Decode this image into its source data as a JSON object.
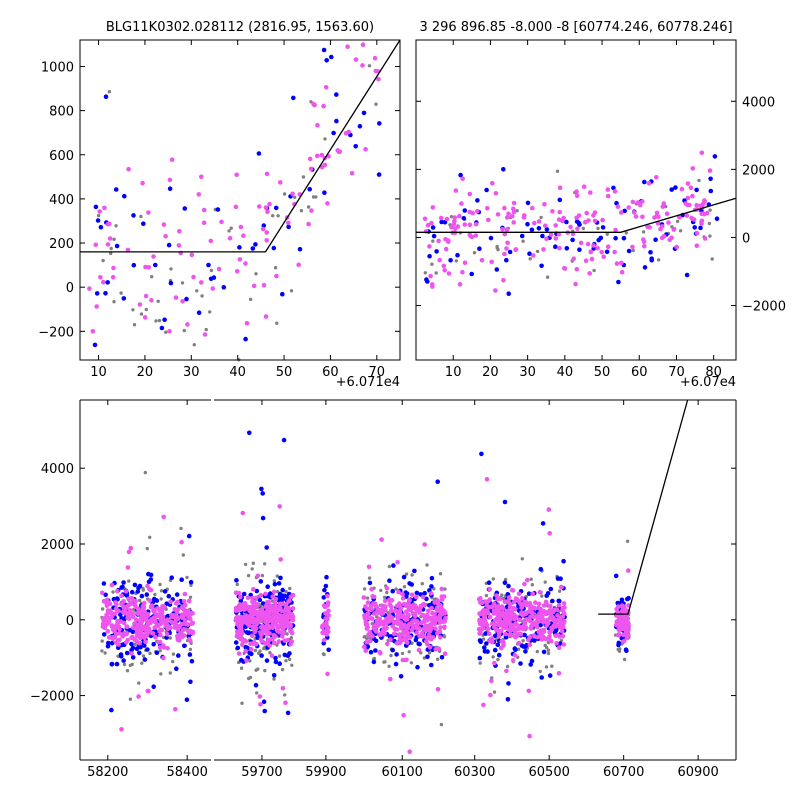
{
  "colors": {
    "gray": "#808080",
    "blue": "#0000ff",
    "pink": "#ee55ee",
    "fit": "#000000"
  },
  "chart_data": [
    {
      "id": "top-left",
      "type": "scatter",
      "title": "BLG11K0302.028112 (2816.95, 1563.60)",
      "xlim": [
        6,
        75
      ],
      "ylim": [
        -330,
        1120
      ],
      "xticks": [
        10,
        20,
        30,
        40,
        50,
        60,
        70
      ],
      "yticks": [
        -200,
        0,
        200,
        400,
        600,
        800,
        1000
      ],
      "offset_label": "+6.071e4",
      "fit_line": {
        "x": [
          6,
          46,
          75
        ],
        "y": [
          160,
          160,
          1120
        ]
      },
      "seed": 11,
      "series": [
        {
          "name": "gray",
          "color_key": "gray",
          "n": 55
        },
        {
          "name": "blue",
          "color_key": "blue",
          "n": 60
        },
        {
          "name": "pink",
          "color_key": "pink",
          "n": 110
        }
      ]
    },
    {
      "id": "top-right",
      "type": "scatter",
      "title": "3 296 896.85 -8.000 -8 [60774.246, 60778.246]",
      "xlim": [
        0,
        86
      ],
      "ylim": [
        -3600,
        5800
      ],
      "xticks": [
        10,
        20,
        30,
        40,
        50,
        60,
        70,
        80
      ],
      "yticks": [
        -2000,
        0,
        2000,
        4000
      ],
      "offset_label": "+6.07e4",
      "fit_line": {
        "x": [
          0,
          55,
          86
        ],
        "y": [
          150,
          150,
          1150
        ]
      },
      "seed": 29,
      "series": [
        {
          "name": "gray",
          "color_key": "gray",
          "n": 50
        },
        {
          "name": "blue",
          "color_key": "blue",
          "n": 90
        },
        {
          "name": "pink",
          "color_key": "pink",
          "n": 200
        }
      ]
    },
    {
      "id": "bottom",
      "type": "scatter",
      "title": "",
      "ylim": [
        -3700,
        5800
      ],
      "yticks": [
        -2000,
        0,
        2000,
        4000
      ],
      "segments": [
        {
          "xlim": [
            58130,
            58460
          ],
          "xticks": [
            58200,
            58400
          ]
        },
        {
          "xlim": [
            59550,
            60050
          ],
          "xticks": [
            59700,
            59900
          ],
          "secondary_xticks": [
            60100
          ]
        }
      ],
      "right_axis": {
        "xlim": [
          60000,
          61050
        ],
        "xticks": [
          60300,
          60500,
          60700,
          60900
        ]
      },
      "seasons": [
        {
          "x_center": 58300,
          "x_span": 115
        },
        {
          "x_center": 59770,
          "x_span": 125
        },
        {
          "x_center": 60145,
          "x_span": 125
        },
        {
          "x_center": 60475,
          "x_span": 115
        },
        {
          "x_center": 60745,
          "x_span": 18
        }
      ],
      "fit_line": {
        "x": [
          60680,
          60760,
          60920
        ],
        "y": [
          150,
          150,
          5800
        ]
      },
      "seed": 57,
      "series": [
        {
          "name": "gray",
          "color_key": "gray",
          "n_per_season": 110
        },
        {
          "name": "blue",
          "color_key": "blue",
          "n_per_season": 170
        },
        {
          "name": "pink",
          "color_key": "pink",
          "n_per_season": 320
        }
      ]
    }
  ]
}
